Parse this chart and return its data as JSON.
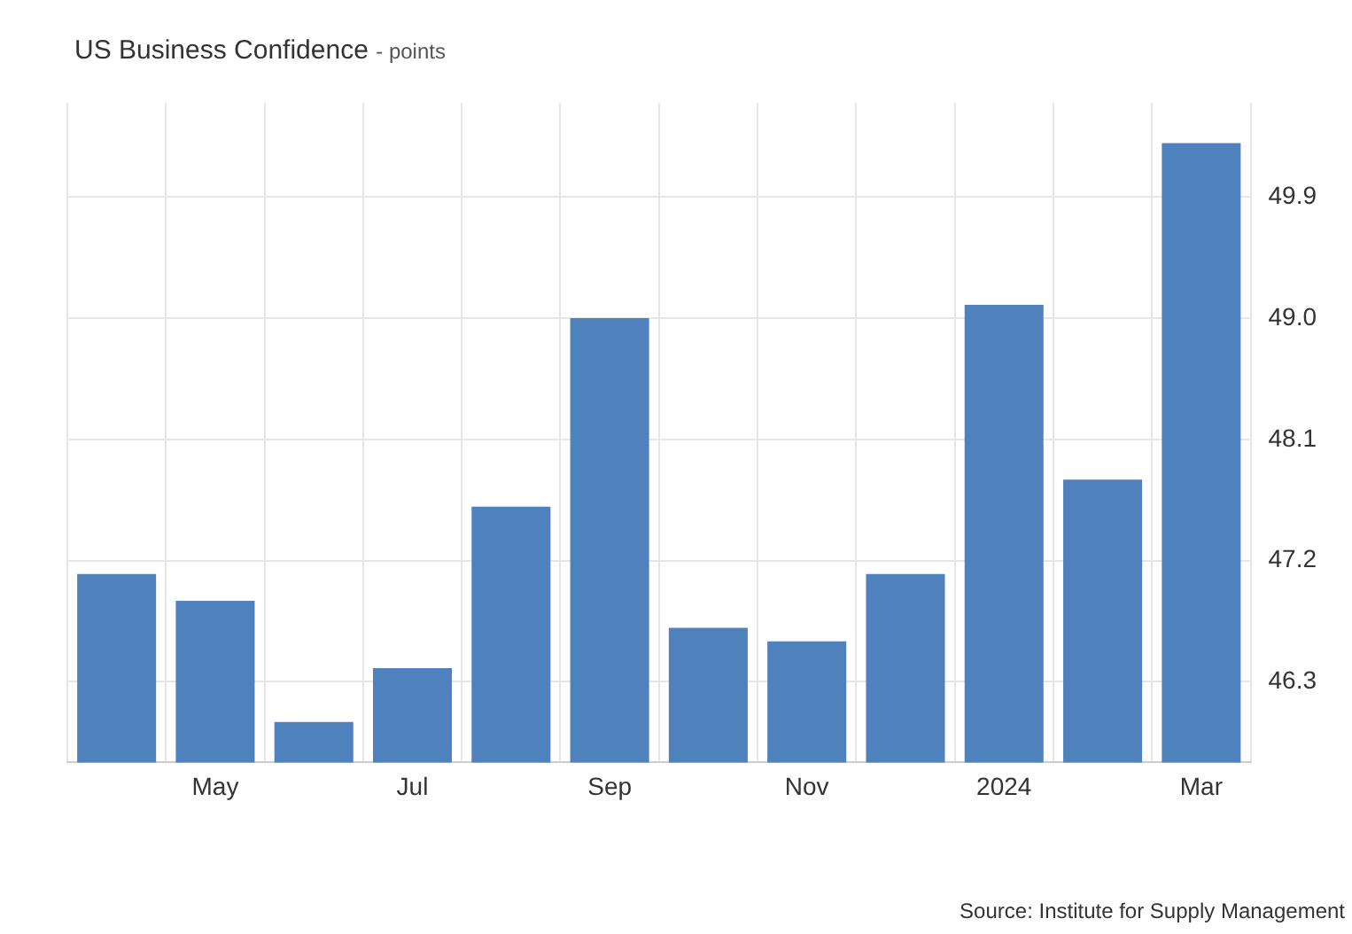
{
  "chart_data": {
    "type": "bar",
    "title": "US Business Confidence",
    "subtitle": "- points",
    "categories": [
      null,
      "May",
      null,
      "Jul",
      null,
      "Sep",
      null,
      "Nov",
      null,
      "2024",
      null,
      "Mar"
    ],
    "values": [
      47.1,
      46.9,
      46.0,
      46.4,
      47.6,
      49.0,
      46.7,
      46.6,
      47.1,
      49.1,
      47.8,
      50.3
    ],
    "color": "#4f81bd",
    "ylim": [
      45.7,
      50.6
    ],
    "yticks": [
      46.3,
      47.2,
      48.1,
      {
        "value": 49,
        "label": "49.0"
      },
      49.9
    ],
    "grid": true,
    "annotations": [
      "Source: Institute for Supply Management"
    ]
  }
}
